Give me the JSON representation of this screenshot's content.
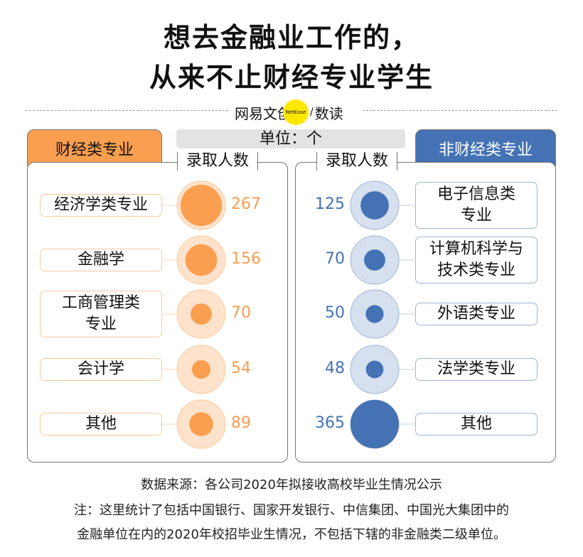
{
  "title": {
    "line1": "想去金融业工作的，",
    "line2": "从来不止财经专业学生"
  },
  "logo": {
    "text": "网易文创",
    "badge": "NetEase",
    "slash": "/",
    "suffix": "数读"
  },
  "unit_label": "单位：个",
  "colors": {
    "finance": "#fa9e4f",
    "non_finance": "#4472b4",
    "finance_light": "#fde3cc",
    "non_finance_light": "#d6e0ef"
  },
  "chart_data": {
    "type": "bubble",
    "unit": "个",
    "groups": [
      {
        "name": "财经类专业",
        "column_header": "录取人数",
        "categories": [
          "经济学类专业",
          "金融学",
          "工商管理类专业",
          "会计学",
          "其他"
        ],
        "values": [
          267,
          156,
          70,
          54,
          89
        ]
      },
      {
        "name": "非财经类专业",
        "column_header": "录取人数",
        "categories": [
          "电子信息类专业",
          "计算机科学与技术类专业",
          "外语类专业",
          "法学类专业",
          "其他"
        ],
        "values": [
          125,
          70,
          50,
          48,
          365
        ]
      }
    ]
  },
  "left_labels": [
    "经济学类专业",
    "金融学",
    "工商管理类\n专业",
    "会计学",
    "其他"
  ],
  "right_labels": [
    "电子信息类\n专业",
    "计算机科学与\n技术类专业",
    "外语类专业",
    "法学类专业",
    "其他"
  ],
  "footer": {
    "source": "数据来源：各公司2020年拟接收高校毕业生情况公示",
    "note1": "注：这里统计了包括中国银行、国家开发银行、中信集团、中国光大集团中的",
    "note2": "金融单位在内的2020年校招毕业生情况，不包括下辖的非金融类二级单位。"
  }
}
